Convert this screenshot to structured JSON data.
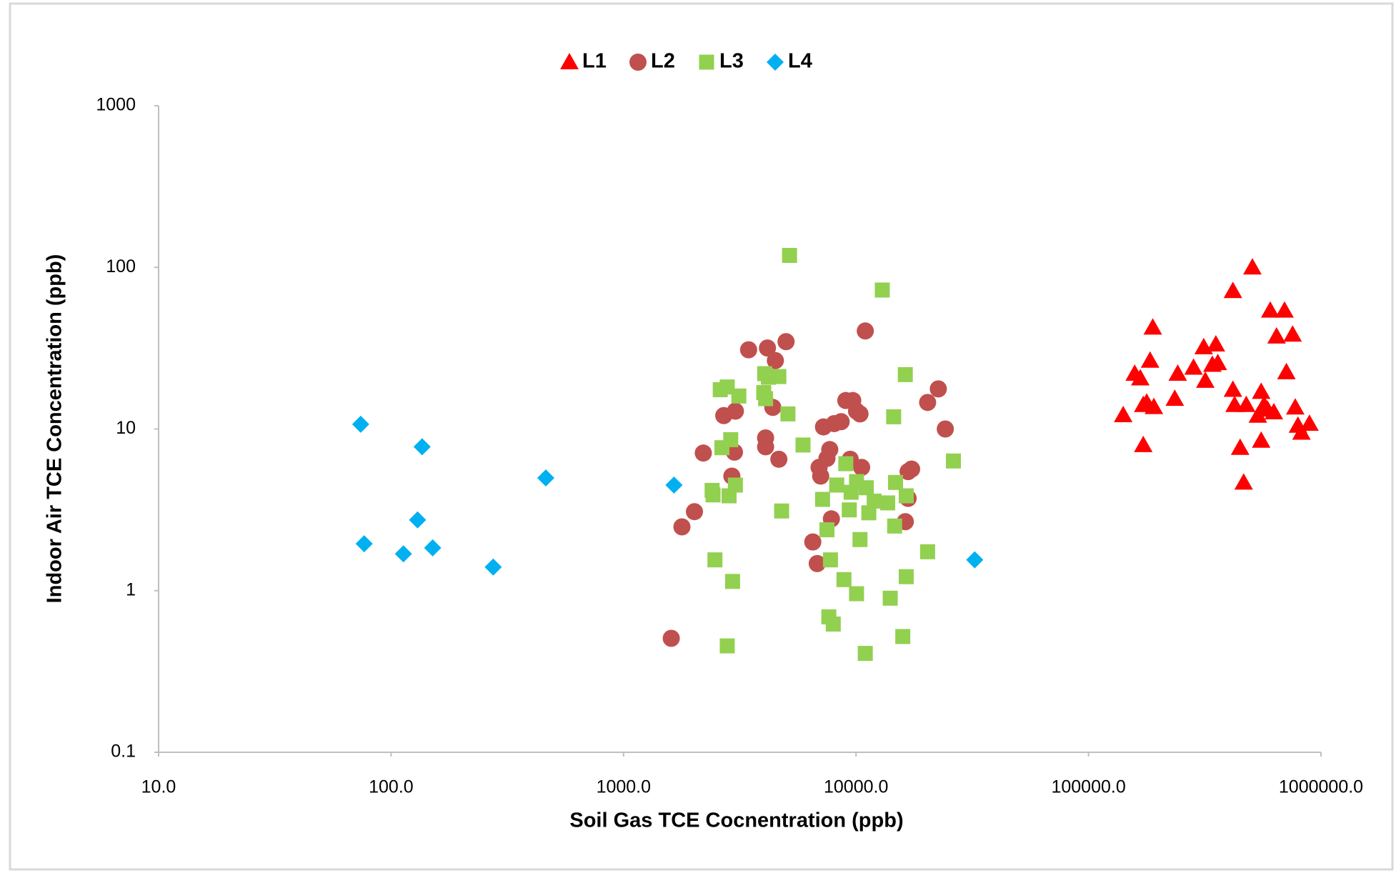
{
  "chart_data": {
    "type": "scatter",
    "x_label": "Soil Gas TCE Cocnentration (ppb)",
    "y_label": "Indoor Air TCE Concentration (ppb)",
    "x_log": true,
    "y_log": true,
    "grid": false,
    "legend_position": "top",
    "xlim": [
      10,
      1000000
    ],
    "xticks": [
      {
        "value": 10,
        "label": "10.0"
      },
      {
        "value": 100,
        "label": "100.0"
      },
      {
        "value": 1000,
        "label": "1000.0"
      },
      {
        "value": 10000,
        "label": "10000.0"
      },
      {
        "value": 100000,
        "label": "100000.0"
      },
      {
        "value": 1000000,
        "label": "1000000.0"
      }
    ],
    "ylim": [
      0.1,
      1000
    ],
    "yticks": [
      0.1,
      1,
      10,
      100,
      1000
    ],
    "series": [
      {
        "name": "L1",
        "color": "#ff0000",
        "marker": "triangle",
        "x": [
          141000,
          158000,
          167000,
          172000,
          178000,
          172000,
          184000,
          189000,
          191000,
          235000,
          242000,
          283000,
          313000,
          318000,
          341000,
          353000,
          360000,
          418000,
          418000,
          425000,
          449000,
          465000,
          477000,
          507000,
          535000,
          553000,
          553000,
          569000,
          589000,
          605000,
          627000,
          644000,
          697000,
          710000,
          755000,
          775000,
          796000,
          824000,
          892000
        ],
        "y": [
          12.2,
          22.0,
          20.6,
          14.1,
          14.6,
          7.96,
          26.5,
          42.5,
          13.7,
          15.4,
          22.0,
          24.0,
          32.1,
          19.9,
          25.0,
          33.4,
          25.6,
          71.5,
          17.5,
          14.1,
          7.66,
          4.67,
          14.1,
          100,
          12.1,
          17.0,
          8.48,
          14.1,
          13.2,
          54.1,
          12.7,
          37.4,
          54.1,
          22.5,
          38.4,
          13.6,
          10.5,
          9.5,
          10.8
        ]
      },
      {
        "name": "L2",
        "color": "#c0504d",
        "marker": "circle",
        "x": [
          1604,
          1783,
          2018,
          2203,
          2698,
          2923,
          3027,
          2999,
          3451,
          4083,
          4159,
          4083,
          4385,
          4498,
          4656,
          5000,
          6516,
          6808,
          6934,
          7047,
          7244,
          7499,
          7709,
          7834,
          8054,
          8630,
          9036,
          9441,
          9683,
          10050,
          10400,
          10570,
          10960,
          16290,
          16750,
          16750,
          17340,
          20320,
          22590,
          24210
        ],
        "y": [
          0.507,
          2.48,
          3.08,
          7.1,
          12.1,
          5.11,
          12.9,
          7.19,
          30.9,
          8.81,
          31.7,
          7.76,
          13.6,
          26.5,
          6.5,
          34.7,
          2.0,
          1.47,
          5.79,
          5.11,
          10.3,
          6.58,
          7.46,
          2.78,
          10.8,
          11.1,
          15.0,
          6.5,
          15.0,
          12.9,
          12.4,
          5.79,
          40.4,
          2.67,
          5.45,
          3.72,
          5.65,
          14.6,
          17.7,
          10.0
        ]
      },
      {
        "name": "L3",
        "color": "#92d050",
        "marker": "square",
        "x": [
          2427,
          2404,
          2472,
          2606,
          2650,
          2793,
          2793,
          2844,
          2891,
          2944,
          3027,
          3133,
          4009,
          4046,
          4083,
          4198,
          4656,
          4786,
          5093,
          5176,
          5916,
          7178,
          7499,
          7638,
          7762,
          7980,
          8260,
          8872,
          9036,
          9354,
          9528,
          10050,
          10050,
          10400,
          10960,
          11070,
          11350,
          11970,
          12970,
          13680,
          14030,
          14520,
          14660,
          14790,
          15890,
          16290,
          16440,
          16440,
          20320,
          26240
        ],
        "y": [
          3.91,
          4.17,
          1.55,
          17.5,
          7.66,
          0.455,
          18.2,
          3.86,
          8.59,
          1.14,
          4.5,
          16.0,
          16.8,
          22.0,
          15.4,
          20.9,
          21.1,
          3.11,
          12.4,
          118.6,
          7.96,
          3.67,
          2.38,
          0.688,
          1.55,
          0.621,
          4.5,
          1.17,
          6.1,
          3.16,
          4.06,
          4.73,
          0.957,
          2.07,
          0.409,
          4.33,
          3.03,
          3.58,
          72.4,
          3.49,
          0.898,
          11.9,
          2.51,
          4.67,
          0.52,
          21.7,
          1.22,
          3.86,
          1.74,
          6.34
        ]
      },
      {
        "name": "L4",
        "color": "#00b0f0",
        "marker": "diamond",
        "x": [
          74,
          76.6,
          136,
          130,
          113,
          151,
          275,
          463,
          1648,
          32400
        ],
        "y": [
          10.7,
          1.95,
          7.76,
          2.74,
          1.69,
          1.84,
          1.4,
          4.98,
          4.5,
          1.55
        ]
      }
    ]
  }
}
